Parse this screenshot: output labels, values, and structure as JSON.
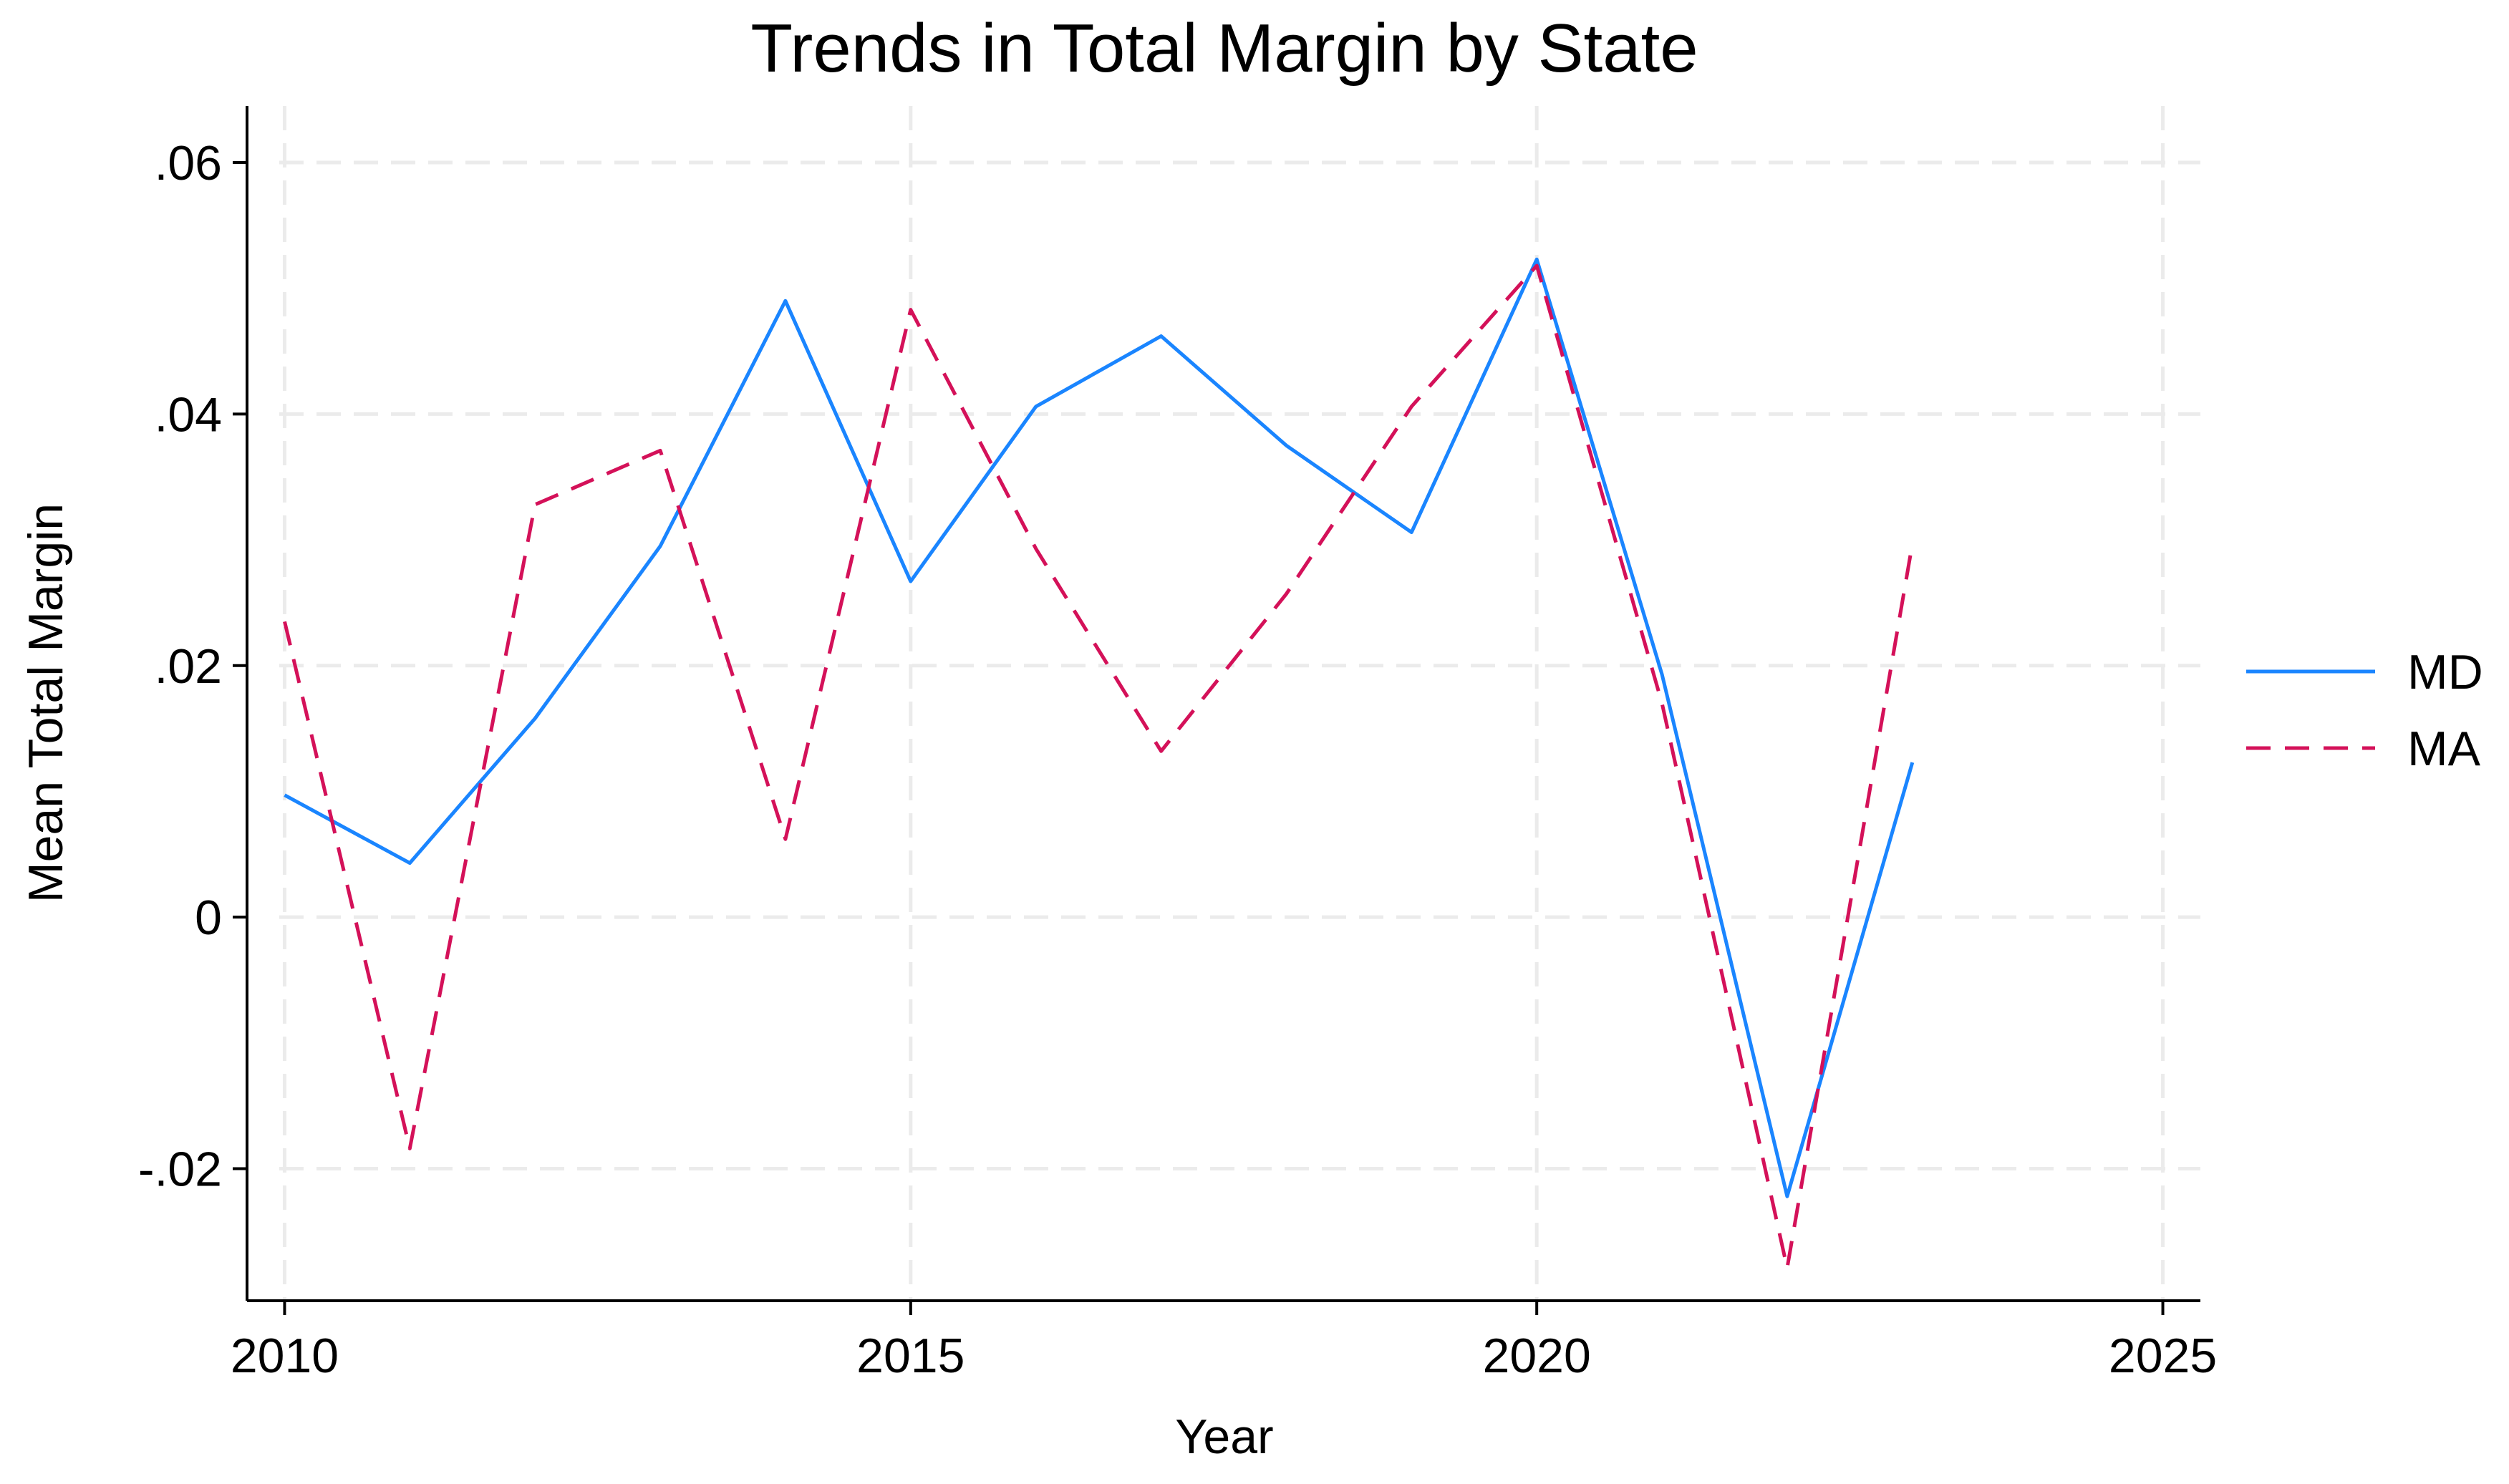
{
  "chart_data": {
    "type": "line",
    "title": "Trends in Total Margin by State",
    "xlabel": "Year",
    "ylabel": "Mean Total Margin",
    "xlim": [
      2009.7,
      2025.3
    ],
    "ylim": [
      -0.0305,
      0.0645
    ],
    "x_ticks": [
      2010,
      2015,
      2020,
      2025
    ],
    "x_tick_labels": [
      "2010",
      "2015",
      "2020",
      "2025"
    ],
    "y_ticks": [
      -0.02,
      0,
      0.02,
      0.04,
      0.06
    ],
    "y_tick_labels": [
      "-.02",
      "0",
      ".02",
      ".04",
      ".06"
    ],
    "grid": true,
    "legend_position": "right",
    "x": [
      2010,
      2011,
      2012,
      2013,
      2014,
      2015,
      2016,
      2017,
      2018,
      2019,
      2020,
      2021,
      2022,
      2023
    ],
    "series": [
      {
        "name": "MD",
        "color": "#1a85ff",
        "dash": "solid",
        "values": [
          0.0097,
          0.0043,
          0.0158,
          0.0295,
          0.049,
          0.0267,
          0.0406,
          0.0462,
          0.0375,
          0.0306,
          0.0523,
          0.0193,
          -0.0222,
          0.0123
        ]
      },
      {
        "name": "MA",
        "color": "#d41159",
        "dash": "dashed",
        "values": [
          0.0235,
          -0.0184,
          0.0328,
          0.0371,
          0.0062,
          0.0483,
          0.0293,
          0.0132,
          0.0257,
          0.0406,
          0.0518,
          0.017,
          -0.0279,
          0.0297
        ]
      }
    ]
  }
}
